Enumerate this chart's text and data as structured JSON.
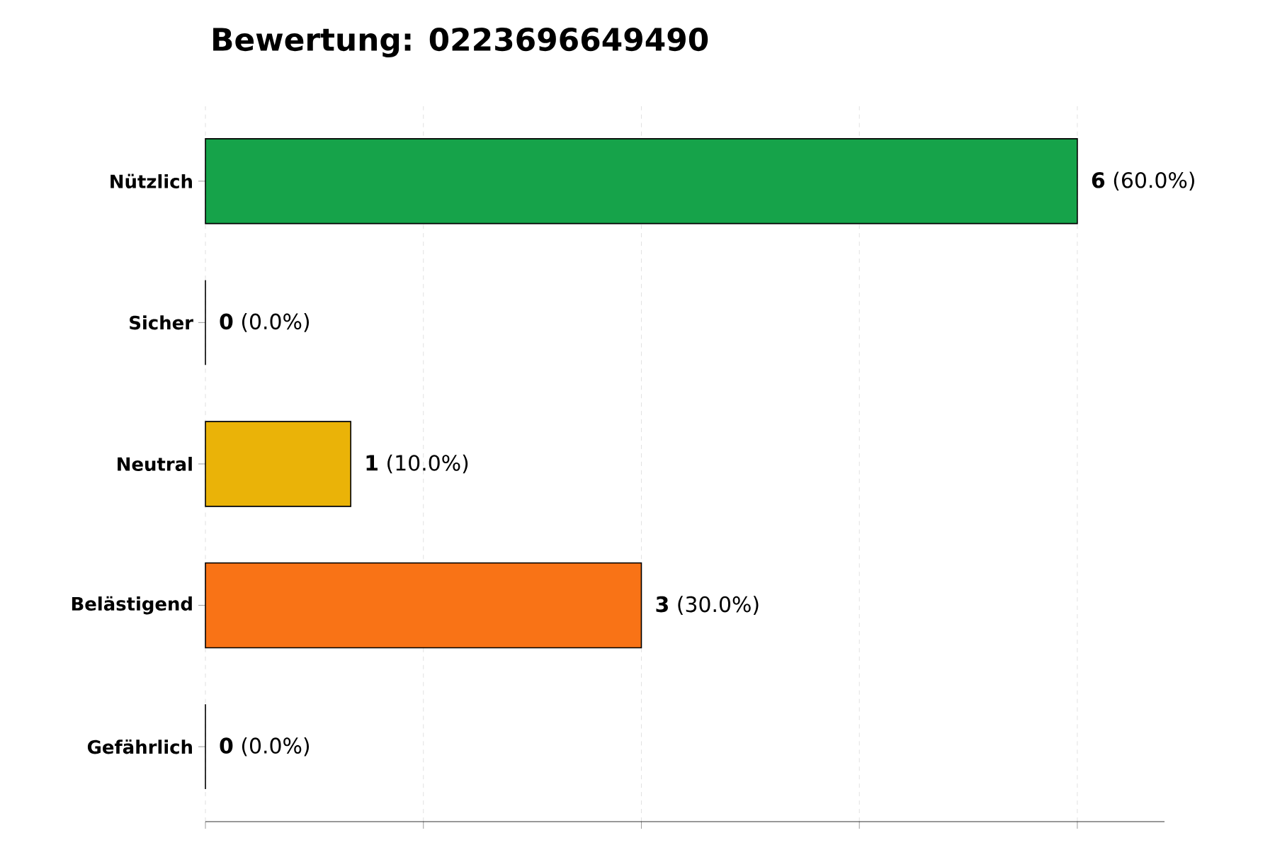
{
  "chart_data": {
    "type": "bar",
    "orientation": "horizontal",
    "title": "Bewertung: 0223696649490",
    "categories": [
      "Nützlich",
      "Sicher",
      "Neutral",
      "Belästigend",
      "Gefährlich"
    ],
    "values": [
      6,
      0,
      1,
      3,
      0
    ],
    "colors": [
      "#16a34a",
      "#22c55e",
      "#eab308",
      "#f97316",
      "#dc2626"
    ],
    "value_labels": [
      "**6** (60.0%)",
      "**0** (0.0%)",
      "**1** (10.0%)",
      "**3** (30.0%)",
      "**0** (0.0%)"
    ],
    "xlim": [
      0,
      6.6
    ],
    "xticks": [
      {
        "value": 0,
        "label": null
      },
      {
        "value": 1.5,
        "label": null
      },
      {
        "value": 3,
        "label": null
      },
      {
        "value": 4.5,
        "label": null
      },
      {
        "value": 6,
        "label": null
      }
    ],
    "grid": "x",
    "tick_labels": "y"
  }
}
